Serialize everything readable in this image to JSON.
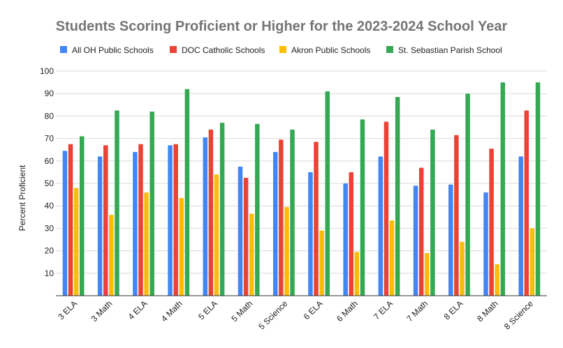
{
  "chart_data": {
    "type": "bar",
    "title": "Students Scoring Proficient or Higher for the 2023-2024 School Year",
    "xlabel": "",
    "ylabel": "Percent Proficient",
    "ylim": [
      0,
      100
    ],
    "yticks": [
      10,
      20,
      30,
      40,
      50,
      60,
      70,
      80,
      90,
      100
    ],
    "grid": true,
    "legend_position": "top",
    "categories": [
      "3 ELA",
      "3 Math",
      "4 ELA",
      "4 Math",
      "5 ELA",
      "5 Math",
      "5 Science",
      "6 ELA",
      "6 Math",
      "7 ELA",
      "7 Math",
      "8 ELA",
      "8 Math",
      "8 Science"
    ],
    "series": [
      {
        "name": "All OH Public Schools",
        "color": "#4285f4",
        "values": [
          64.5,
          62,
          64,
          67,
          70.5,
          57.5,
          64,
          55,
          50,
          62,
          49,
          49.5,
          46,
          62
        ]
      },
      {
        "name": "DOC Catholic Schools",
        "color": "#ea4335",
        "values": [
          67.5,
          67,
          67.5,
          67.5,
          74,
          52.5,
          69.5,
          68.5,
          55,
          77.5,
          57,
          71.5,
          65.5,
          82.5
        ]
      },
      {
        "name": "Akron Public Schools",
        "color": "#fbbc04",
        "values": [
          48,
          36,
          46,
          43.5,
          54,
          36.5,
          39.5,
          29,
          19.5,
          33.5,
          19,
          24,
          14,
          30
        ]
      },
      {
        "name": "St. Sebastian Parish School",
        "color": "#34a853",
        "values": [
          71,
          82.5,
          82,
          92,
          77,
          76.5,
          74,
          91,
          78.5,
          88.5,
          74,
          90,
          95,
          95
        ]
      }
    ]
  }
}
